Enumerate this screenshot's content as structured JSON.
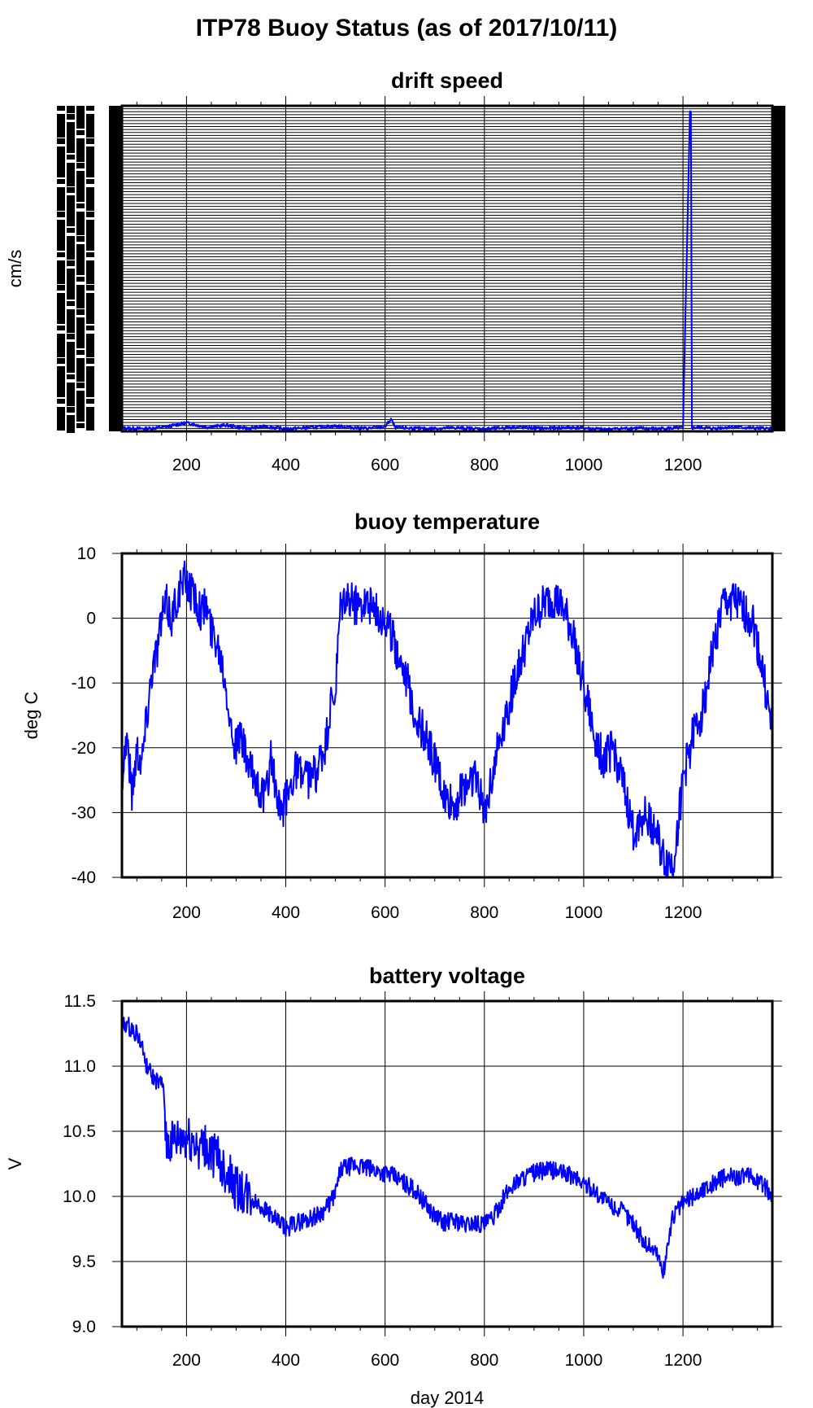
{
  "page": {
    "title": "ITP78 Buoy Status (as of 2017/10/11)"
  },
  "chart_data": [
    {
      "type": "line",
      "title": "drift speed",
      "ylabel": "cm/s",
      "xlabel": "",
      "xlim": [
        70,
        1380
      ],
      "ylim": [
        0,
        100
      ],
      "grid": true,
      "x_ticks": [
        200,
        400,
        600,
        800,
        1000,
        1200
      ],
      "y_ticks": [],
      "series_color": "#0000ff",
      "notes_visual": "y-axis tick labels overplotted into an illegible black band; dense horizontal grid",
      "series": [
        {
          "x": [
            70,
            120,
            160,
            200,
            240,
            280,
            320,
            360,
            400,
            450,
            500,
            560,
            600,
            612,
            620,
            680,
            740,
            800,
            860,
            920,
            980,
            1040,
            1100,
            1150,
            1200,
            1214,
            1216,
            1218,
            1230,
            1260,
            1300,
            1340,
            1380
          ],
          "values": [
            1,
            0.8,
            1.4,
            2.6,
            1.3,
            1.9,
            0.9,
            1.5,
            0.7,
            1.2,
            1.6,
            0.9,
            1.4,
            3.8,
            1.2,
            0.8,
            1.1,
            0.7,
            1.3,
            0.9,
            1.2,
            0.6,
            1.0,
            0.8,
            1.1,
            98,
            98,
            1.0,
            1.3,
            0.9,
            1.4,
            1.0,
            0.8
          ]
        }
      ]
    },
    {
      "type": "line",
      "title": "buoy temperature",
      "ylabel": "deg C",
      "xlabel": "",
      "xlim": [
        70,
        1380
      ],
      "ylim": [
        -40,
        10
      ],
      "grid": true,
      "x_ticks": [
        200,
        400,
        600,
        800,
        1000,
        1200
      ],
      "y_ticks": [
        10,
        0,
        -10,
        -20,
        -30,
        -40
      ],
      "series_color": "#0000ff",
      "series": [
        {
          "x": [
            70,
            80,
            90,
            100,
            110,
            120,
            130,
            140,
            150,
            160,
            170,
            180,
            190,
            200,
            210,
            220,
            230,
            240,
            250,
            260,
            270,
            280,
            290,
            300,
            310,
            320,
            330,
            340,
            350,
            360,
            370,
            380,
            390,
            400,
            420,
            440,
            460,
            480,
            490,
            500,
            505,
            510,
            520,
            540,
            560,
            580,
            600,
            620,
            640,
            660,
            680,
            700,
            720,
            740,
            760,
            780,
            800,
            820,
            840,
            860,
            880,
            900,
            920,
            940,
            960,
            980,
            1000,
            1020,
            1040,
            1060,
            1080,
            1100,
            1120,
            1140,
            1160,
            1180,
            1200,
            1220,
            1240,
            1260,
            1280,
            1300,
            1320,
            1340,
            1360,
            1380
          ],
          "values": [
            -24,
            -18,
            -27,
            -20,
            -22,
            -15,
            -8,
            -5,
            0,
            2,
            0,
            3,
            5,
            6,
            4,
            3,
            1,
            2,
            -2,
            -3,
            -6,
            -10,
            -17,
            -20,
            -18,
            -22,
            -24,
            -25,
            -27,
            -28,
            -21,
            -27,
            -31,
            -28,
            -23,
            -25,
            -24,
            -20,
            -14,
            -12,
            -5,
            1,
            3,
            2,
            3,
            1,
            0,
            -4,
            -8,
            -15,
            -18,
            -22,
            -28,
            -29,
            -26,
            -24,
            -30,
            -22,
            -16,
            -10,
            -5,
            0,
            2,
            3,
            1,
            -3,
            -10,
            -18,
            -22,
            -20,
            -26,
            -33,
            -30,
            -32,
            -37,
            -38,
            -25,
            -18,
            -14,
            -5,
            2,
            3,
            1,
            0,
            -8,
            -18
          ]
        }
      ]
    },
    {
      "type": "line",
      "title": "battery voltage",
      "ylabel": "V",
      "xlabel": "day 2014",
      "xlim": [
        70,
        1380
      ],
      "ylim": [
        9.0,
        11.5
      ],
      "grid": true,
      "x_ticks": [
        200,
        400,
        600,
        800,
        1000,
        1200
      ],
      "y_ticks": [
        11.5,
        11.0,
        10.5,
        10.0,
        9.5,
        9.0
      ],
      "series_color": "#0000ff",
      "series": [
        {
          "x": [
            70,
            80,
            90,
            100,
            110,
            120,
            130,
            140,
            150,
            155,
            160,
            170,
            180,
            200,
            220,
            240,
            260,
            280,
            300,
            320,
            340,
            360,
            380,
            400,
            420,
            440,
            460,
            480,
            500,
            510,
            520,
            540,
            560,
            580,
            600,
            620,
            640,
            660,
            680,
            700,
            720,
            740,
            760,
            780,
            800,
            820,
            840,
            860,
            880,
            900,
            920,
            940,
            960,
            980,
            1000,
            1020,
            1040,
            1060,
            1080,
            1100,
            1120,
            1140,
            1150,
            1160,
            1170,
            1180,
            1200,
            1220,
            1240,
            1260,
            1280,
            1300,
            1320,
            1340,
            1360,
            1380
          ],
          "values": [
            11.3,
            11.32,
            11.28,
            11.25,
            11.15,
            11.0,
            10.92,
            10.88,
            10.85,
            10.82,
            10.38,
            10.4,
            10.42,
            10.44,
            10.4,
            10.36,
            10.3,
            10.2,
            10.05,
            10.0,
            9.95,
            9.9,
            9.82,
            9.75,
            9.8,
            9.82,
            9.85,
            9.9,
            10.02,
            10.2,
            10.22,
            10.24,
            10.22,
            10.2,
            10.18,
            10.15,
            10.1,
            10.05,
            9.95,
            9.85,
            9.8,
            9.82,
            9.78,
            9.8,
            9.78,
            9.85,
            10.0,
            10.1,
            10.15,
            10.18,
            10.2,
            10.2,
            10.18,
            10.15,
            10.1,
            10.05,
            9.98,
            9.92,
            9.88,
            9.8,
            9.65,
            9.6,
            9.55,
            9.4,
            9.65,
            9.85,
            9.95,
            10.0,
            10.05,
            10.1,
            10.14,
            10.15,
            10.16,
            10.14,
            10.1,
            10.0
          ]
        }
      ]
    }
  ]
}
